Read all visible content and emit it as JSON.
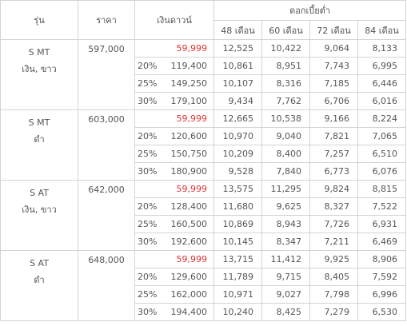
{
  "headers": {
    "model": "รุ่น",
    "price": "ราคา",
    "down": "เงินดาวน์",
    "installment": "ดอกเบี้ยต่ำ",
    "terms": [
      "48 เดือน",
      "60 เดือน",
      "72 เดือน",
      "84 เดือน"
    ]
  },
  "groups": [
    {
      "model": "S MT",
      "color": "เงิน, ขาว",
      "price": "597,000",
      "rows": [
        {
          "pct": "",
          "down": "59,999",
          "inst": [
            "12,525",
            "10,422",
            "9,064",
            "8,133"
          ]
        },
        {
          "pct": "20%",
          "down": "119,400",
          "inst": [
            "10,861",
            "8,951",
            "7,743",
            "6,995"
          ]
        },
        {
          "pct": "25%",
          "down": "149,250",
          "inst": [
            "10,107",
            "8,316",
            "7,185",
            "6,446"
          ]
        },
        {
          "pct": "30%",
          "down": "179,100",
          "inst": [
            "9,434",
            "7,762",
            "6,706",
            "6,016"
          ]
        }
      ]
    },
    {
      "model": "S MT",
      "color": "ดำ",
      "price": "603,000",
      "rows": [
        {
          "pct": "",
          "down": "59,999",
          "inst": [
            "12,665",
            "10,538",
            "9,166",
            "8,224"
          ]
        },
        {
          "pct": "20%",
          "down": "120,600",
          "inst": [
            "10,970",
            "9,040",
            "7,821",
            "7,065"
          ]
        },
        {
          "pct": "25%",
          "down": "150,750",
          "inst": [
            "10,209",
            "8,400",
            "7,257",
            "6,510"
          ]
        },
        {
          "pct": "30%",
          "down": "180,900",
          "inst": [
            "9,528",
            "7,840",
            "6,773",
            "6,076"
          ]
        }
      ]
    },
    {
      "model": "S AT",
      "color": "เงิน, ขาว",
      "price": "642,000",
      "rows": [
        {
          "pct": "",
          "down": "59,999",
          "inst": [
            "13,575",
            "11,295",
            "9,824",
            "8,815"
          ]
        },
        {
          "pct": "20%",
          "down": "128,400",
          "inst": [
            "11,680",
            "9,625",
            "8,327",
            "7,522"
          ]
        },
        {
          "pct": "25%",
          "down": "160,500",
          "inst": [
            "10,869",
            "8,943",
            "7,726",
            "6,931"
          ]
        },
        {
          "pct": "30%",
          "down": "192,600",
          "inst": [
            "10,145",
            "8,347",
            "7,211",
            "6,469"
          ]
        }
      ]
    },
    {
      "model": "S AT",
      "color": "ดำ",
      "price": "648,000",
      "rows": [
        {
          "pct": "",
          "down": "59,999",
          "inst": [
            "13,715",
            "11,412",
            "9,925",
            "8,906"
          ]
        },
        {
          "pct": "20%",
          "down": "129,600",
          "inst": [
            "11,789",
            "9,715",
            "8,405",
            "7,592"
          ]
        },
        {
          "pct": "25%",
          "down": "162,000",
          "inst": [
            "10,971",
            "9,027",
            "7,798",
            "6,996"
          ]
        },
        {
          "pct": "30%",
          "down": "194,400",
          "inst": [
            "10,240",
            "8,425",
            "7,279",
            "6,530"
          ]
        }
      ]
    }
  ],
  "colors": {
    "promo_down": "#e03232",
    "text": "#555555",
    "border": "#d4d4d4"
  }
}
